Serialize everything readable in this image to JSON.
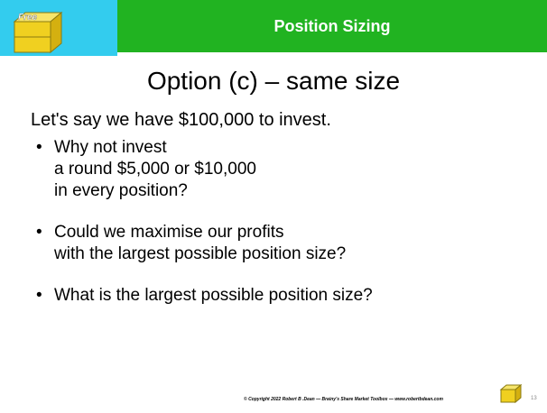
{
  "header": {
    "title": "Position Sizing",
    "icon_label": "Free"
  },
  "slide": {
    "title": "Option (c) – same size",
    "intro": "Let's say we have $100,000 to invest.",
    "bullets": [
      [
        "Why not invest",
        "a round $5,000 or $10,000",
        "in every position?"
      ],
      [
        "Could we maximise our profits",
        "with the largest possible position size?"
      ],
      [
        "What is the largest possible position size?"
      ]
    ]
  },
  "footer": {
    "copyright": "© Copyright 2022 Robert B .Dean — Brainy's Share Market Toolbox — www.robertbdean.com",
    "page": "13"
  }
}
